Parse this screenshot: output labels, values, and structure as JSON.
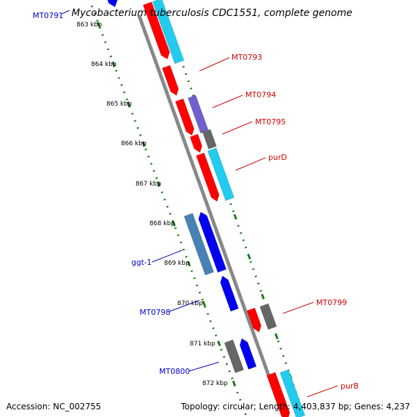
{
  "title": "Mycobacterium tuberculosis CDC1551, complete genome",
  "accession": "Accession: NC_002755",
  "summary": "Topology: circular; Length: 4,403,837 bp; Genes: 4,237",
  "colors": {
    "backbone": "#888888",
    "ruler": "#1a7a1a",
    "red": "#ff0000",
    "cyan": "#22ccee",
    "blue": "#0000ee",
    "steelblue": "#4682b4",
    "gray": "#666666",
    "purple": "#7060cc",
    "label_red": "#d00000",
    "label_blue": "#0000c0"
  },
  "kbp_labels": [
    "863 kbp",
    "864 kbp",
    "865 kbp",
    "866 kbp",
    "867 kbp",
    "868 kbp",
    "869 kbp",
    "870 kbp",
    "871 kbp",
    "872 kbp"
  ],
  "gene_labels": [
    {
      "text": "MT0791",
      "color": "blue"
    },
    {
      "text": "MT0793",
      "color": "red"
    },
    {
      "text": "MT0794",
      "color": "red"
    },
    {
      "text": "MT0795",
      "color": "red"
    },
    {
      "text": "purD",
      "color": "red"
    },
    {
      "text": "ggt-1",
      "color": "blue"
    },
    {
      "text": "MT0798",
      "color": "blue"
    },
    {
      "text": "MT0799",
      "color": "red"
    },
    {
      "text": "MT0800",
      "color": "blue"
    },
    {
      "text": "purB",
      "color": "red"
    }
  ]
}
